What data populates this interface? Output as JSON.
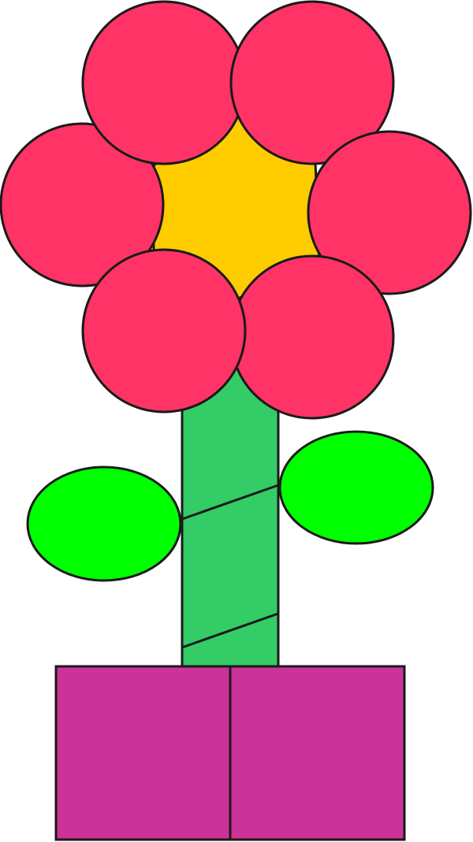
{
  "colors": {
    "background": "#ffffff",
    "outline": "#1a1a1a",
    "petal": "#ff3366",
    "center": "#ffcc00",
    "stem": "#33cc66",
    "leaf": "#00ff00",
    "pot": "#cc3399"
  },
  "shapes": {
    "petal_count": 6,
    "leaf_count": 2,
    "stem_stripe_count": 2,
    "pot_panel_count": 2
  }
}
